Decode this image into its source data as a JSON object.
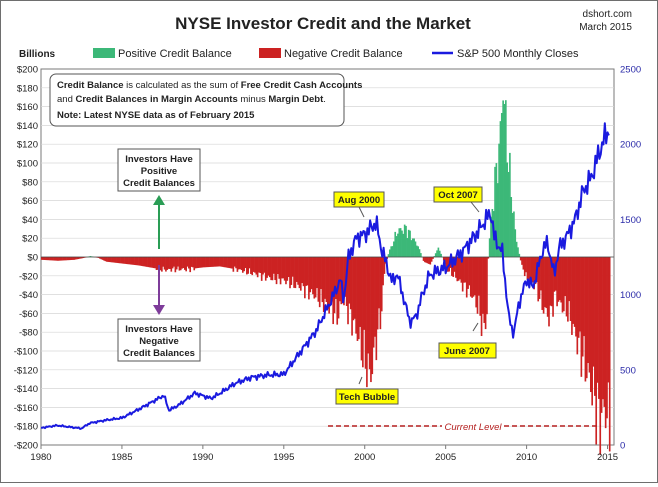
{
  "header": {
    "title": "NYSE Investor Credit and the Market",
    "source": "dshort.com",
    "date": "March 2015"
  },
  "chart_data": {
    "type": "bar",
    "title": "NYSE Investor Credit and the Market",
    "y_left_label": "Billions",
    "y_left_range": [
      -200,
      200
    ],
    "y_left_ticks": [
      "$200",
      "$180",
      "$160",
      "$140",
      "$120",
      "$100",
      "$80",
      "$60",
      "$40",
      "$20",
      "$0",
      "-$20",
      "-$40",
      "-$60",
      "-$80",
      "-$100",
      "-$120",
      "-$140",
      "-$160",
      "-$180",
      "-$200"
    ],
    "y_right_range": [
      0,
      2500
    ],
    "y_right_ticks": [
      "2500",
      "2000",
      "1500",
      "1000",
      "500",
      "0"
    ],
    "x_range": [
      1980,
      2015.4
    ],
    "x_ticks": [
      "1980",
      "1985",
      "1990",
      "1995",
      "2000",
      "2005",
      "2010",
      "2015"
    ],
    "legend": {
      "position": "top",
      "positive": "Positive Credit Balance",
      "negative": "Negative Credit Balance",
      "sp500": "S&P 500 Monthly Closes"
    },
    "colors": {
      "positive": "#3cb878",
      "negative": "#cc2222",
      "sp500": "#1a1adf",
      "callout": "#ffff00"
    },
    "credit_balance_series": {
      "name": "Credit Balance",
      "points": [
        [
          1980.0,
          -3
        ],
        [
          1981.0,
          -4
        ],
        [
          1982.0,
          -3
        ],
        [
          1982.6,
          -1
        ],
        [
          1983.0,
          1
        ],
        [
          1983.5,
          -1
        ],
        [
          1984.0,
          -5
        ],
        [
          1985.0,
          -7
        ],
        [
          1986.0,
          -9
        ],
        [
          1987.0,
          -12
        ],
        [
          1987.8,
          -14
        ],
        [
          1988.0,
          -13
        ],
        [
          1989.0,
          -13
        ],
        [
          1990.0,
          -11
        ],
        [
          1991.0,
          -10
        ],
        [
          1992.0,
          -13
        ],
        [
          1993.0,
          -17
        ],
        [
          1994.0,
          -22
        ],
        [
          1995.0,
          -25
        ],
        [
          1996.0,
          -32
        ],
        [
          1997.0,
          -42
        ],
        [
          1997.8,
          -55
        ],
        [
          1998.3,
          -62
        ],
        [
          1998.6,
          -45
        ],
        [
          1999.0,
          -60
        ],
        [
          1999.5,
          -82
        ],
        [
          2000.0,
          -112
        ],
        [
          2000.3,
          -128
        ],
        [
          2000.6,
          -95
        ],
        [
          2001.0,
          -55
        ],
        [
          2001.2,
          -10
        ],
        [
          2001.5,
          8
        ],
        [
          2002.0,
          28
        ],
        [
          2002.5,
          30
        ],
        [
          2003.0,
          18
        ],
        [
          2003.3,
          10
        ],
        [
          2003.6,
          -5
        ],
        [
          2004.0,
          -8
        ],
        [
          2004.5,
          10
        ],
        [
          2004.8,
          -2
        ],
        [
          2005.0,
          -12
        ],
        [
          2005.5,
          -20
        ],
        [
          2006.0,
          -30
        ],
        [
          2006.5,
          -38
        ],
        [
          2007.0,
          -55
        ],
        [
          2007.3,
          -78
        ],
        [
          2007.5,
          -60
        ],
        [
          2007.6,
          10
        ],
        [
          2008.0,
          80
        ],
        [
          2008.3,
          120
        ],
        [
          2008.5,
          185
        ],
        [
          2008.7,
          130
        ],
        [
          2009.0,
          70
        ],
        [
          2009.3,
          20
        ],
        [
          2009.6,
          -5
        ],
        [
          2010.0,
          -25
        ],
        [
          2010.5,
          -30
        ],
        [
          2011.0,
          -55
        ],
        [
          2011.4,
          -65
        ],
        [
          2011.7,
          -40
        ],
        [
          2012.0,
          -50
        ],
        [
          2012.5,
          -58
        ],
        [
          2013.0,
          -85
        ],
        [
          2013.5,
          -110
        ],
        [
          2014.0,
          -140
        ],
        [
          2014.5,
          -175
        ],
        [
          2014.8,
          -160
        ],
        [
          2015.1,
          -180
        ]
      ]
    },
    "sp500_series": {
      "name": "S&P 500 Monthly Closes",
      "points": [
        [
          1980.0,
          114
        ],
        [
          1981.0,
          130
        ],
        [
          1982.5,
          110
        ],
        [
          1983.0,
          145
        ],
        [
          1984.0,
          165
        ],
        [
          1985.0,
          180
        ],
        [
          1986.0,
          235
        ],
        [
          1987.6,
          330
        ],
        [
          1987.9,
          230
        ],
        [
          1988.5,
          265
        ],
        [
          1989.5,
          345
        ],
        [
          1990.5,
          310
        ],
        [
          1991.0,
          340
        ],
        [
          1992.0,
          410
        ],
        [
          1993.0,
          450
        ],
        [
          1994.0,
          465
        ],
        [
          1995.0,
          470
        ],
        [
          1996.0,
          615
        ],
        [
          1997.0,
          760
        ],
        [
          1998.0,
          980
        ],
        [
          1998.5,
          1100
        ],
        [
          1998.7,
          960
        ],
        [
          1999.0,
          1250
        ],
        [
          1999.5,
          1380
        ],
        [
          2000.0,
          1400
        ],
        [
          2000.7,
          1480
        ],
        [
          2001.0,
          1320
        ],
        [
          2001.7,
          1080
        ],
        [
          2002.0,
          1140
        ],
        [
          2002.8,
          815
        ],
        [
          2003.2,
          860
        ],
        [
          2003.5,
          980
        ],
        [
          2004.0,
          1130
        ],
        [
          2005.0,
          1180
        ],
        [
          2006.0,
          1280
        ],
        [
          2007.0,
          1420
        ],
        [
          2007.8,
          1550
        ],
        [
          2008.0,
          1380
        ],
        [
          2008.5,
          1280
        ],
        [
          2008.9,
          850
        ],
        [
          2009.2,
          735
        ],
        [
          2009.5,
          930
        ],
        [
          2010.0,
          1100
        ],
        [
          2010.4,
          1050
        ],
        [
          2011.0,
          1300
        ],
        [
          2011.3,
          1345
        ],
        [
          2011.7,
          1130
        ],
        [
          2012.0,
          1310
        ],
        [
          2012.5,
          1390
        ],
        [
          2013.0,
          1500
        ],
        [
          2013.5,
          1690
        ],
        [
          2014.0,
          1780
        ],
        [
          2014.5,
          1950
        ],
        [
          2014.9,
          2060
        ],
        [
          2015.1,
          2100
        ]
      ]
    },
    "annotations": {
      "aug2000": "Aug 2000",
      "oct2007": "Oct 2007",
      "tech_bubble": "Tech Bubble",
      "june2007": "June 2007",
      "current_level": "Current Level",
      "positive_note": [
        "Investors Have",
        "Positive",
        "Credit Balances"
      ],
      "negative_note": [
        "Investors Have",
        "Negative",
        "Credit Balances"
      ],
      "info_box": {
        "line1_bold1": "Credit Balance",
        "line1_mid": " is calculated as the sum of ",
        "line1_bold2": "Free Credit Cash Accounts",
        "line2_start": "and ",
        "line2_bold": "Credit Balances in Margin Accounts",
        "line2_mid": " minus ",
        "line2_bold2": "Margin Debt",
        "line2_end": ".",
        "note": "Note: Latest NYSE data as of February 2015"
      }
    }
  }
}
